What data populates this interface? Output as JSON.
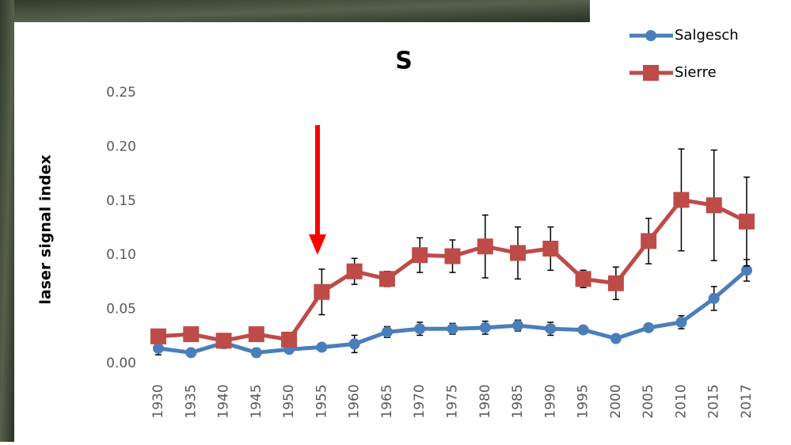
{
  "chart_data": {
    "type": "line",
    "title": "S",
    "y_label": "laser signal index",
    "categories": [
      "1930",
      "1935",
      "1940",
      "1945",
      "1950",
      "1955",
      "1960",
      "1965",
      "1970",
      "1975",
      "1980",
      "1985",
      "1990",
      "1995",
      "2000",
      "2005",
      "2010",
      "2015",
      "2017"
    ],
    "series": [
      {
        "name": "Salgesch",
        "color": "#4a7ebb",
        "marker": "circle",
        "values": [
          0.014,
          0.01,
          0.019,
          0.01,
          0.013,
          0.015,
          0.018,
          0.029,
          0.032,
          0.032,
          0.033,
          0.035,
          0.032,
          0.031,
          0.023,
          0.033,
          0.038,
          0.06,
          0.086
        ],
        "errors": [
          0.006,
          0.002,
          0.005,
          0.004,
          0.002,
          0.003,
          0.008,
          0.005,
          0.006,
          0.005,
          0.006,
          0.005,
          0.006,
          0.003,
          0.002,
          0.003,
          0.006,
          0.011,
          0.01
        ]
      },
      {
        "name": "Sierre",
        "color": "#be4b48",
        "marker": "square",
        "values": [
          0.025,
          0.027,
          0.021,
          0.027,
          0.022,
          0.066,
          0.085,
          0.078,
          0.1,
          0.099,
          0.108,
          0.102,
          0.106,
          0.078,
          0.074,
          0.113,
          0.151,
          0.146,
          0.131
        ],
        "errors": [
          0.002,
          0.002,
          0.002,
          0.002,
          0.002,
          0.021,
          0.012,
          0.007,
          0.016,
          0.015,
          0.029,
          0.024,
          0.02,
          0.008,
          0.015,
          0.021,
          0.047,
          0.051,
          0.041
        ]
      }
    ],
    "ylim": [
      0,
      0.25
    ],
    "yticks": [
      {
        "value": 0,
        "label": "0.00"
      },
      0.05,
      {
        "value": 0.1,
        "label": "0.10"
      },
      0.15,
      {
        "value": 0.2,
        "label": "0.20"
      },
      0.25
    ]
  }
}
